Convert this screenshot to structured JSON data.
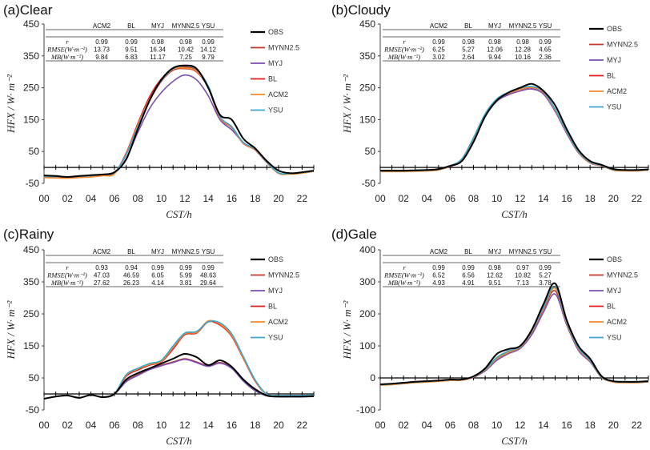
{
  "figure": {
    "xlabel": "CST/h",
    "ylabel": "HFX / W· m⁻²",
    "series_colors": {
      "OBS": "#000000",
      "MYNN2.5": "#c0392b",
      "MYJ": "#7b4fb0",
      "BL": "#e41a1c",
      "ACM2": "#f58a2c",
      "YSU": "#3aa6c8"
    },
    "legend_order": [
      "OBS",
      "MYNN2.5",
      "MYJ",
      "BL",
      "ACM2",
      "YSU"
    ]
  },
  "chart_data": [
    {
      "type": "line",
      "title": "(a)Clear",
      "xlabel": "CST/h",
      "ylabel": "HFX / W· m⁻²",
      "xlim": [
        0,
        23
      ],
      "ylim": [
        -50,
        450
      ],
      "yticks": [
        -50,
        50,
        150,
        250,
        350,
        450
      ],
      "xticks": [
        "00",
        "02",
        "04",
        "06",
        "08",
        "10",
        "12",
        "14",
        "16",
        "18",
        "20",
        "22"
      ],
      "x": [
        0,
        1,
        2,
        3,
        4,
        5,
        6,
        7,
        8,
        9,
        10,
        11,
        12,
        13,
        14,
        15,
        16,
        17,
        18,
        19,
        20,
        21,
        22,
        23
      ],
      "series": [
        {
          "name": "OBS",
          "values": [
            -25,
            -27,
            -30,
            -27,
            -24,
            -22,
            -15,
            25,
            120,
            210,
            275,
            312,
            320,
            310,
            250,
            165,
            150,
            90,
            60,
            20,
            -10,
            -18,
            -15,
            -10
          ]
        },
        {
          "name": "MYNN2.5",
          "values": [
            -30,
            -31,
            -32,
            -30,
            -28,
            -24,
            -18,
            40,
            130,
            210,
            270,
            305,
            310,
            300,
            250,
            155,
            125,
            75,
            55,
            15,
            -18,
            -20,
            -17,
            -12
          ]
        },
        {
          "name": "MYJ",
          "values": [
            -30,
            -31,
            -32,
            -30,
            -28,
            -24,
            -18,
            28,
            110,
            185,
            235,
            270,
            290,
            275,
            225,
            150,
            118,
            78,
            55,
            15,
            -18,
            -20,
            -17,
            -12
          ]
        },
        {
          "name": "BL",
          "values": [
            -30,
            -31,
            -32,
            -30,
            -28,
            -24,
            -18,
            45,
            138,
            222,
            278,
            310,
            315,
            305,
            255,
            158,
            128,
            76,
            56,
            16,
            -18,
            -20,
            -17,
            -12
          ]
        },
        {
          "name": "ACM2",
          "values": [
            -32,
            -33,
            -34,
            -32,
            -30,
            -26,
            -20,
            42,
            133,
            215,
            273,
            308,
            312,
            302,
            252,
            156,
            126,
            76,
            56,
            16,
            -19,
            -21,
            -18,
            -12
          ]
        },
        {
          "name": "YSU",
          "values": [
            -28,
            -29,
            -30,
            -28,
            -26,
            -22,
            -16,
            40,
            128,
            212,
            272,
            310,
            318,
            308,
            256,
            160,
            128,
            78,
            58,
            17,
            -17,
            -19,
            -16,
            -11
          ]
        }
      ],
      "stats": {
        "headers": [
          "ACM2",
          "BL",
          "MYJ",
          "MYNN2.5",
          "YSU"
        ],
        "rows": [
          {
            "label": "r",
            "values": [
              "0.99",
              "0.99",
              "0.98",
              "0.98",
              "0.99"
            ]
          },
          {
            "label": "RMSE(W·m⁻²)",
            "values": [
              "13.73",
              "9.51",
              "16.34",
              "10.42",
              "14.12"
            ]
          },
          {
            "label": "MB(W·m⁻²)",
            "values": [
              "9.84",
              "6.83",
              "11.17",
              "7.25",
              "9.79"
            ]
          }
        ]
      }
    },
    {
      "type": "line",
      "title": "(b)Cloudy",
      "xlabel": "CST/h",
      "ylabel": "HFX / W· m⁻²",
      "xlim": [
        0,
        23
      ],
      "ylim": [
        -50,
        450
      ],
      "yticks": [
        -50,
        50,
        150,
        250,
        350,
        450
      ],
      "xticks": [
        "00",
        "02",
        "04",
        "06",
        "08",
        "10",
        "12",
        "14",
        "16",
        "18",
        "20",
        "22"
      ],
      "x": [
        0,
        1,
        2,
        3,
        4,
        5,
        6,
        7,
        8,
        9,
        10,
        11,
        12,
        13,
        14,
        15,
        16,
        17,
        18,
        19,
        20,
        21,
        22,
        23
      ],
      "series": [
        {
          "name": "OBS",
          "values": [
            -10,
            -10,
            -10,
            -9,
            -8,
            -5,
            5,
            20,
            80,
            160,
            210,
            235,
            250,
            262,
            240,
            195,
            120,
            55,
            20,
            8,
            -5,
            -8,
            -8,
            -6
          ]
        },
        {
          "name": "MYNN2.5",
          "values": [
            -12,
            -12,
            -12,
            -11,
            -10,
            -7,
            4,
            25,
            90,
            165,
            212,
            232,
            245,
            250,
            235,
            180,
            110,
            48,
            15,
            5,
            -8,
            -10,
            -10,
            -8
          ]
        },
        {
          "name": "MYJ",
          "values": [
            -12,
            -12,
            -12,
            -11,
            -10,
            -7,
            3,
            22,
            85,
            160,
            208,
            228,
            240,
            246,
            230,
            176,
            106,
            46,
            14,
            5,
            -8,
            -10,
            -10,
            -8
          ]
        },
        {
          "name": "BL",
          "values": [
            -12,
            -12,
            -12,
            -11,
            -10,
            -7,
            4,
            26,
            92,
            167,
            214,
            234,
            247,
            252,
            236,
            181,
            110,
            48,
            15,
            5,
            -8,
            -10,
            -10,
            -8
          ]
        },
        {
          "name": "ACM2",
          "values": [
            -13,
            -13,
            -13,
            -12,
            -11,
            -8,
            4,
            26,
            91,
            166,
            213,
            233,
            246,
            251,
            235,
            180,
            110,
            48,
            15,
            5,
            -9,
            -11,
            -11,
            -8
          ]
        },
        {
          "name": "YSU",
          "values": [
            -11,
            -11,
            -11,
            -10,
            -9,
            -6,
            5,
            27,
            93,
            168,
            215,
            236,
            249,
            254,
            238,
            183,
            112,
            50,
            17,
            6,
            -7,
            -9,
            -9,
            -7
          ]
        }
      ],
      "stats": {
        "headers": [
          "ACM2",
          "BL",
          "MYJ",
          "MYNN2.5",
          "YSU"
        ],
        "rows": [
          {
            "label": "r",
            "values": [
              "0.99",
              "0.98",
              "0.98",
              "0.98",
              "0.99"
            ]
          },
          {
            "label": "RMSE(W·m⁻²)",
            "values": [
              "6.25",
              "5.27",
              "12.06",
              "12.28",
              "4.65"
            ]
          },
          {
            "label": "MB(W·m⁻²)",
            "values": [
              "3.02",
              "2.64",
              "9.94",
              "10.16",
              "2.36"
            ]
          }
        ]
      }
    },
    {
      "type": "line",
      "title": "(c)Rainy",
      "xlabel": "CST/h",
      "ylabel": "HFX / W· m⁻²",
      "xlim": [
        0,
        23
      ],
      "ylim": [
        -50,
        450
      ],
      "yticks": [
        -50,
        50,
        150,
        250,
        350,
        450
      ],
      "xticks": [
        "00",
        "02",
        "04",
        "06",
        "08",
        "10",
        "12",
        "14",
        "16",
        "18",
        "20",
        "22"
      ],
      "x": [
        0,
        1,
        2,
        3,
        4,
        5,
        6,
        7,
        8,
        9,
        10,
        11,
        12,
        13,
        14,
        15,
        16,
        17,
        18,
        19,
        20,
        21,
        22,
        23
      ],
      "series": [
        {
          "name": "OBS",
          "values": [
            -15,
            -8,
            -5,
            -12,
            -3,
            -10,
            0,
            45,
            65,
            80,
            95,
            110,
            125,
            115,
            90,
            105,
            85,
            45,
            15,
            -5,
            -8,
            -8,
            -8,
            -7
          ]
        },
        {
          "name": "MYNN2.5",
          "values": [
            -15,
            -8,
            -5,
            -12,
            -3,
            -10,
            0,
            40,
            60,
            78,
            90,
            100,
            110,
            100,
            88,
            98,
            82,
            42,
            12,
            -5,
            -8,
            -8,
            -8,
            -7
          ]
        },
        {
          "name": "MYJ",
          "values": [
            -15,
            -8,
            -5,
            -12,
            -3,
            -10,
            0,
            38,
            58,
            76,
            88,
            98,
            108,
            98,
            86,
            96,
            80,
            40,
            10,
            -6,
            -9,
            -9,
            -9,
            -8
          ]
        },
        {
          "name": "BL",
          "values": [
            -15,
            -8,
            -5,
            -12,
            -3,
            -10,
            0,
            55,
            75,
            90,
            100,
            140,
            185,
            190,
            225,
            215,
            180,
            110,
            40,
            -2,
            -6,
            -6,
            -6,
            -5
          ]
        },
        {
          "name": "ACM2",
          "values": [
            -15,
            -8,
            -5,
            -12,
            -3,
            -10,
            0,
            58,
            78,
            92,
            102,
            145,
            188,
            192,
            228,
            218,
            183,
            112,
            42,
            -2,
            -6,
            -6,
            -6,
            -5
          ]
        },
        {
          "name": "YSU",
          "values": [
            -15,
            -8,
            -5,
            -12,
            -3,
            -10,
            0,
            60,
            80,
            95,
            105,
            150,
            190,
            195,
            225,
            222,
            188,
            116,
            44,
            -1,
            -5,
            -5,
            -5,
            -4
          ]
        }
      ],
      "stats": {
        "headers": [
          "ACM2",
          "BL",
          "MYJ",
          "MYNN2.5",
          "YSU"
        ],
        "rows": [
          {
            "label": "r",
            "values": [
              "0.93",
              "0.94",
              "0.99",
              "0.99",
              "0.99"
            ]
          },
          {
            "label": "RMSE(W·m⁻²)",
            "values": [
              "47.03",
              "46.59",
              "6.05",
              "5.99",
              "48.63"
            ]
          },
          {
            "label": "MB(W·m⁻²)",
            "values": [
              "27.62",
              "26.23",
              "4.14",
              "3.81",
              "29.64"
            ]
          }
        ]
      }
    },
    {
      "type": "line",
      "title": "(d)Gale",
      "xlabel": "CST/h",
      "ylabel": "HFX / W· m⁻²",
      "xlim": [
        0,
        23
      ],
      "ylim": [
        -100,
        400
      ],
      "yticks": [
        -100,
        0,
        100,
        200,
        300,
        400
      ],
      "xticks": [
        "00",
        "02",
        "04",
        "06",
        "08",
        "10",
        "12",
        "14",
        "16",
        "18",
        "20",
        "22"
      ],
      "x": [
        0,
        1,
        2,
        3,
        4,
        5,
        6,
        7,
        8,
        9,
        10,
        11,
        12,
        13,
        14,
        15,
        16,
        17,
        18,
        19,
        20,
        21,
        22,
        23
      ],
      "series": [
        {
          "name": "OBS",
          "values": [
            -20,
            -18,
            -15,
            -12,
            -10,
            -8,
            -5,
            -5,
            5,
            30,
            75,
            90,
            100,
            150,
            230,
            295,
            180,
            100,
            60,
            5,
            -10,
            -12,
            -12,
            -10
          ]
        },
        {
          "name": "MYNN2.5",
          "values": [
            -22,
            -20,
            -17,
            -14,
            -12,
            -10,
            -7,
            -6,
            3,
            25,
            60,
            80,
            95,
            140,
            215,
            272,
            170,
            90,
            52,
            2,
            -12,
            -14,
            -14,
            -12
          ]
        },
        {
          "name": "MYJ",
          "values": [
            -22,
            -20,
            -17,
            -14,
            -12,
            -10,
            -7,
            -6,
            2,
            22,
            55,
            76,
            92,
            135,
            205,
            262,
            165,
            86,
            50,
            1,
            -12,
            -14,
            -14,
            -12
          ]
        },
        {
          "name": "BL",
          "values": [
            -22,
            -20,
            -17,
            -14,
            -12,
            -10,
            -7,
            -6,
            3,
            26,
            62,
            82,
            97,
            145,
            220,
            282,
            172,
            92,
            54,
            2,
            -12,
            -14,
            -14,
            -12
          ]
        },
        {
          "name": "ACM2",
          "values": [
            -23,
            -21,
            -18,
            -15,
            -13,
            -11,
            -8,
            -7,
            3,
            25,
            60,
            80,
            96,
            143,
            218,
            280,
            171,
            91,
            53,
            2,
            -13,
            -15,
            -15,
            -12
          ]
        },
        {
          "name": "YSU",
          "values": [
            -21,
            -19,
            -16,
            -13,
            -11,
            -9,
            -6,
            -5,
            4,
            27,
            64,
            84,
            98,
            146,
            222,
            285,
            175,
            94,
            55,
            3,
            -11,
            -13,
            -13,
            -11
          ]
        }
      ],
      "stats": {
        "headers": [
          "ACM2",
          "BL",
          "MYJ",
          "MYNN2.5",
          "YSU"
        ],
        "rows": [
          {
            "label": "r",
            "values": [
              "0.99",
              "0.99",
              "0.98",
              "0.97",
              "0.99"
            ]
          },
          {
            "label": "RMSE(W·m⁻²)",
            "values": [
              "6.52",
              "6.56",
              "12.62",
              "10.82",
              "5.27"
            ]
          },
          {
            "label": "MB(W·m⁻²)",
            "values": [
              "4.93",
              "4.91",
              "9.51",
              "7.13",
              "3.78"
            ]
          }
        ]
      }
    }
  ]
}
